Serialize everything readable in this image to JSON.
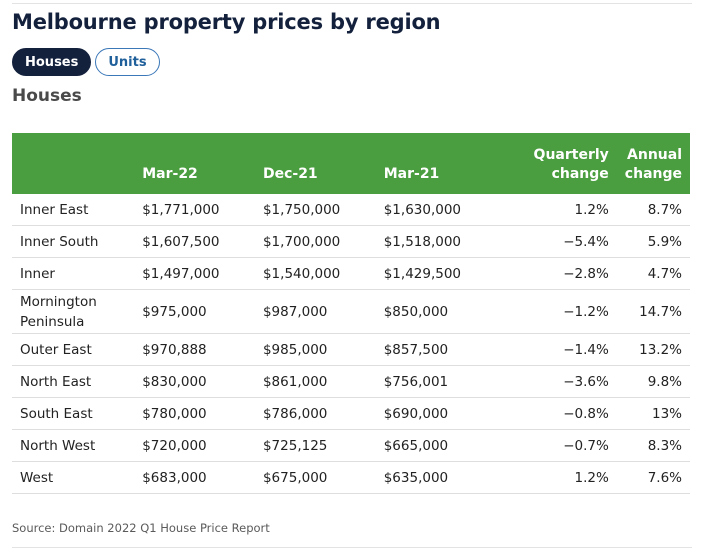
{
  "page": {
    "title": "Melbourne property prices by region",
    "section_heading": "Houses",
    "source": "Source: Domain 2022 Q1 House Price Report"
  },
  "tabs": [
    {
      "label": "Houses",
      "selected": true
    },
    {
      "label": "Units",
      "selected": false
    }
  ],
  "colors": {
    "header_bg": "#4b9e3f",
    "active_tab_bg": "#14213d",
    "inactive_tab_border": "#3b78b8"
  },
  "table": {
    "columns": [
      "",
      "Mar-22",
      "Dec-21",
      "Mar-21",
      "Quarterly change",
      "Annual change"
    ],
    "rows": [
      [
        "Inner East",
        "$1,771,000",
        "$1,750,000",
        "$1,630,000",
        "1.2%",
        "8.7%"
      ],
      [
        "Inner South",
        "$1,607,500",
        "$1,700,000",
        "$1,518,000",
        "−5.4%",
        "5.9%"
      ],
      [
        "Inner",
        "$1,497,000",
        "$1,540,000",
        "$1,429,500",
        "−2.8%",
        "4.7%"
      ],
      [
        "Mornington Peninsula",
        "$975,000",
        "$987,000",
        "$850,000",
        "−1.2%",
        "14.7%"
      ],
      [
        "Outer East",
        "$970,888",
        "$985,000",
        "$857,500",
        "−1.4%",
        "13.2%"
      ],
      [
        "North East",
        "$830,000",
        "$861,000",
        "$756,001",
        "−3.6%",
        "9.8%"
      ],
      [
        "South East",
        "$780,000",
        "$786,000",
        "$690,000",
        "−0.8%",
        "13%"
      ],
      [
        "North West",
        "$720,000",
        "$725,125",
        "$665,000",
        "−0.7%",
        "8.3%"
      ],
      [
        "West",
        "$683,000",
        "$675,000",
        "$635,000",
        "1.2%",
        "7.6%"
      ]
    ]
  }
}
